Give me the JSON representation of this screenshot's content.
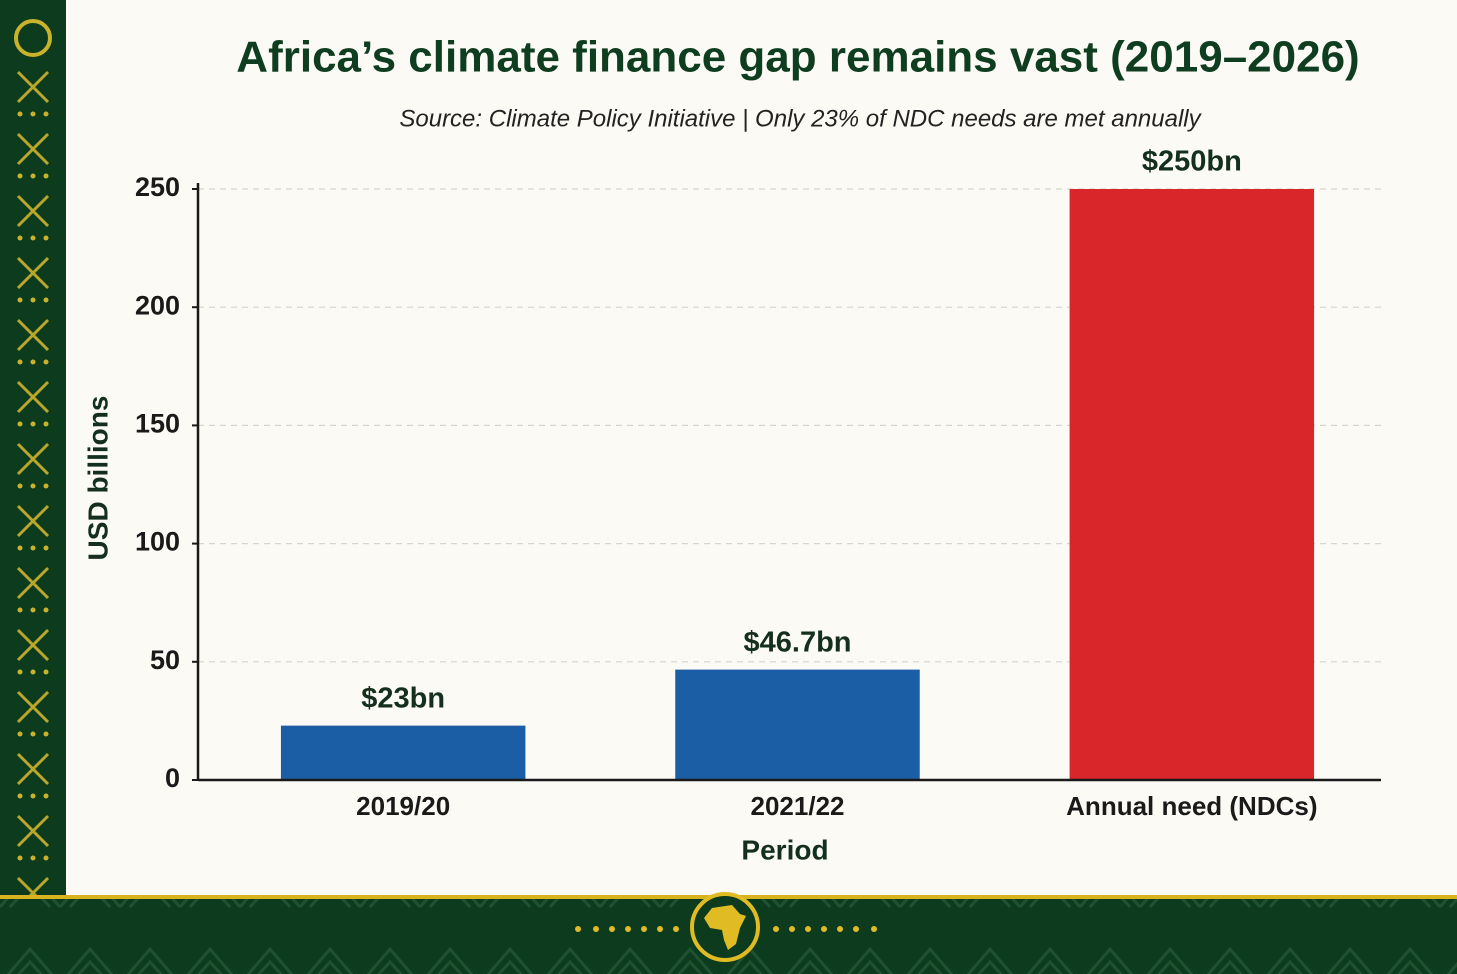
{
  "chart_data": {
    "type": "bar",
    "title": "Africa’s climate finance gap remains vast (2019–2026)",
    "subtitle": "Source: Climate Policy Initiative | Only 23% of NDC needs are met annually",
    "x_label": "Period",
    "y_label": "USD billions",
    "categories": [
      "2019/20",
      "2021/22",
      "Annual need (NDCs)"
    ],
    "values": [
      23,
      46.7,
      250
    ],
    "value_labels": [
      "$23bn",
      "$46.7bn",
      "$250bn"
    ],
    "colors": [
      "#1c5ea6",
      "#1c5ea6",
      "#d9262a"
    ],
    "ylim": [
      0,
      250
    ],
    "yticks": [
      0,
      50,
      100,
      150,
      200,
      250
    ],
    "grid": true
  }
}
